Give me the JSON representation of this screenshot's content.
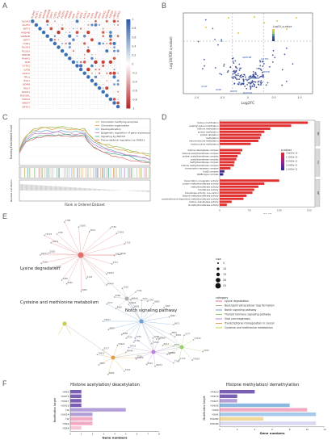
{
  "panels": {
    "A": "A",
    "B": "B",
    "C": "C",
    "D": "D",
    "E": "E",
    "F": "F"
  },
  "chart_data": [
    {
      "type": "heatmap",
      "panel": "A",
      "row_labels": [
        "ALDH2",
        "ACAT1",
        "SIRT1",
        "ARID4B",
        "GRIN2B",
        "SIRT7",
        "CHD1",
        "PLOD2",
        "PLOD3",
        "PRKCB",
        "PAHA1",
        "PAH",
        "SYTK2",
        "KAT8",
        "ASXL2",
        "TPLA",
        "EYA1",
        "KDM8",
        "PAX7",
        "RACK1",
        "RAD54L",
        "TOP2A",
        "UBE2T",
        "LMTK1"
      ],
      "colorbar_ticks": [
        "1",
        "0.8",
        "0.6",
        "0.4",
        "0.2",
        "0",
        "-0.2",
        "-0.4",
        "-0.6",
        "-0.8",
        "-1"
      ],
      "colors": {
        "positive": "#3a6fb5",
        "negative": "#c0392b"
      }
    },
    {
      "type": "scatter",
      "panel": "B",
      "xlabel": "Log2FC",
      "ylabel": "-Log10(FDR q-value)",
      "x_ticks": [
        "-1.0",
        "-0.5",
        "0",
        "0.5",
        "1.0"
      ],
      "legend_title": "-Log10_q-value",
      "annotations": [
        "ARID4B",
        "GSTP1",
        "PCK",
        "KDM8",
        "GAPDH",
        "AASS",
        "GNB",
        "RAMP",
        "RAD54L",
        "ACAT"
      ]
    },
    {
      "type": "line",
      "panel": "C",
      "ylabel_top": "Running Enrichment Score",
      "ylabel_bottom": "Ranked List Metric",
      "xlabel": "Rank in Ordered Dataset",
      "series": [
        {
          "name": "Chromatin modifying enzymes",
          "color": "#8fbc5a"
        },
        {
          "name": "Chromatin organization",
          "color": "#e0a040"
        },
        {
          "name": "Deubiquitination",
          "color": "#6a9fd4"
        },
        {
          "name": "Epigenetic regulation of gene expression",
          "color": "#c77dbb"
        },
        {
          "name": "Signaling by NOTCH",
          "color": "#4caa8a"
        },
        {
          "name": "Transcriptional regulation by RUNX1",
          "color": "#d66a6a"
        }
      ]
    },
    {
      "type": "bar",
      "panel": "D",
      "xlabel": "Count",
      "x_ticks": [
        "0",
        "50",
        "100",
        "150"
      ],
      "groups": [
        "BP",
        "CC",
        "MF"
      ],
      "legend_title": "p.adjust",
      "legend_values": [
        "2.6625e-10",
        "1.2500e-10",
        "6.2500e-11",
        "5.0000e-11",
        "1.0000e-12"
      ],
      "categories": [
        "histone modification",
        "peptidyl-lysine modification",
        "histone methylation",
        "protein methylation",
        "protein alkylation",
        "methylation",
        "macromolecule methylation",
        "histone lysine methylation",
        "histone deacetylase complex",
        "histone acetyltransferase complex",
        "protein acetyltransferase complex",
        "acetyltransferase complex",
        "methyltransferase complex",
        "histone methyltransferase complex",
        "transcription repressor complex",
        "Ino80 complex",
        "INO80-type complex",
        "transcription coregulator activity",
        "protein methyltransferase activity",
        "methyltransferase activity",
        "transferase activity",
        "transferase activity, one-carbon",
        "histone methyltransferase activity",
        "S-adenosylmethionine-dependent methyltransferase activity",
        "histone deacetylase activity",
        "N-methyltransferase activity"
      ],
      "values": [
        148,
        120,
        85,
        75,
        70,
        68,
        65,
        52,
        38,
        35,
        30,
        28,
        25,
        24,
        18,
        8,
        6,
        100,
        75,
        65,
        58,
        55,
        45,
        40,
        20,
        12
      ]
    },
    {
      "type": "bar",
      "panel": "F-left",
      "title": "Histone acetylation/ deacetylation",
      "ylabel": "Modification target",
      "xlabel": "Gene numbers",
      "categories": [
        "H4K5",
        "H4K79",
        "H3K27",
        "H3K18",
        "H4",
        "H3K14",
        "H2",
        "H3K9",
        "H3K4"
      ],
      "values": [
        1,
        1,
        1,
        1,
        5,
        2,
        2,
        2,
        1
      ],
      "x_ticks": [
        "0",
        "1",
        "2",
        "3",
        "4",
        "5",
        "6",
        "7",
        "8"
      ]
    },
    {
      "type": "bar",
      "panel": "F-right",
      "title": "Histone methylation/ demethylation",
      "ylabel": "Modification target",
      "xlabel": "Gene numbers",
      "categories": [
        "H4K20",
        "H3K79",
        "H3K27",
        "H3K36",
        "H3K9",
        "H3K4",
        "H3K9M",
        "H3K4M"
      ],
      "values": [
        4,
        2,
        2,
        8,
        10,
        11,
        5,
        11
      ],
      "x_ticks": [
        "0",
        "2",
        "4",
        "6",
        "8",
        "10",
        "12"
      ]
    }
  ],
  "network": {
    "panel": "E",
    "pathways": [
      "Lysine degradation",
      "Cysteine and methionine metabolism",
      "Notch signaling pathway"
    ],
    "legend_size_title": "size",
    "legend_sizes": [
      "5",
      "10",
      "15",
      "20",
      "25"
    ],
    "legend_category_title": "category",
    "categories": [
      {
        "name": "Lysine degradation",
        "color": "#e07070"
      },
      {
        "name": "Neutrophil extracellular trap formation",
        "color": "#b0b0b0"
      },
      {
        "name": "Notch signaling pathway",
        "color": "#6a9fd4"
      },
      {
        "name": "Thyroid hormone signaling pathway",
        "color": "#9acd6b"
      },
      {
        "name": "Viral carcinogenesis",
        "color": "#b97fd6"
      },
      {
        "name": "Transcriptional misregulation in cancer",
        "color": "#e0a040"
      },
      {
        "name": "Cysteine and methionine metabolism",
        "color": "#c9c94a"
      }
    ],
    "small_labels": [
      "79813",
      "9757",
      "54904",
      "84444",
      "2145",
      "8085",
      "3065",
      "3066",
      "1108",
      "7799",
      "29072",
      "5929",
      "10419",
      "79723",
      "1789",
      "1788",
      "23067",
      "9070",
      "2184",
      "57693",
      "1720",
      "5296",
      "9612",
      "8850",
      "3177",
      "51340",
      "3726",
      "5725",
      "6868",
      "4850"
    ]
  }
}
